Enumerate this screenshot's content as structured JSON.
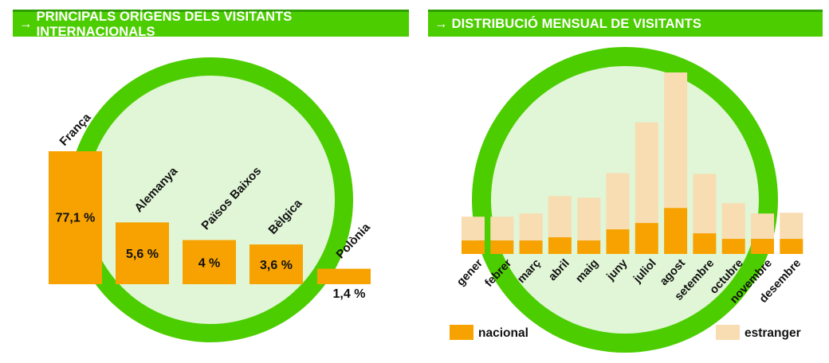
{
  "headers": {
    "left": "PRINCIPALS ORÍGENS DELS VISITANTS INTERNACIONALS",
    "right": "DISTRIBUCIÓ MENSUAL DE VISITANTS",
    "arrow": "→"
  },
  "colors": {
    "ring": "#4ccd00",
    "ring_fill": "#e0f6d6",
    "bar": "#f7a200",
    "bar_light": "#f8dcb2",
    "header": "#4ccd00"
  },
  "chart_data": [
    {
      "type": "bar",
      "title": "PRINCIPALS ORÍGENS DELS VISITANTS INTERNACIONALS",
      "categories": [
        "França",
        "Alemanya",
        "Països Baixos",
        "Bèlgica",
        "Polònia"
      ],
      "values": [
        77.1,
        5.6,
        4,
        3.6,
        1.4
      ],
      "value_labels": [
        "77,1 %",
        "5,6 %",
        "4 %",
        "3,6 %",
        "1,4 %"
      ],
      "unit": "%"
    },
    {
      "type": "bar",
      "stacked": true,
      "title": "DISTRIBUCIÓ MENSUAL DE VISITANTS",
      "categories": [
        "gener",
        "febrer",
        "març",
        "abril",
        "maig",
        "juny",
        "juliol",
        "agost",
        "setembre",
        "octubre",
        "novembre",
        "desembre"
      ],
      "series": [
        {
          "name": "nacional",
          "values": [
            17,
            17,
            17,
            21,
            17,
            31,
            39,
            58,
            26,
            19,
            19,
            19
          ]
        },
        {
          "name": "estranger",
          "values": [
            30,
            30,
            34,
            52,
            54,
            71,
            127,
            171,
            75,
            45,
            32,
            33
          ]
        }
      ],
      "legend": [
        "nacional",
        "estranger"
      ],
      "legend_position": "bottom"
    }
  ]
}
